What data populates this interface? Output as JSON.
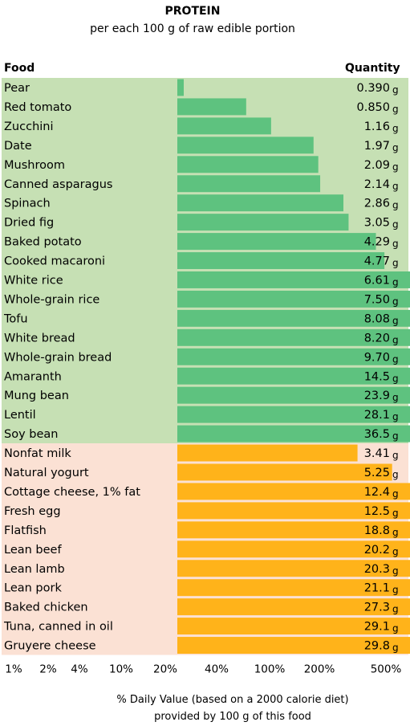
{
  "chart_data": {
    "type": "bar",
    "title": "PROTEIN",
    "subtitle": "per each 100 g of raw edible portion",
    "columns": {
      "food": "Food",
      "quantity": "Quantity"
    },
    "unit": "g",
    "x_axis": {
      "scale": "log",
      "ticks": [
        "1%",
        "2%",
        "4%",
        "10%",
        "20%",
        "40%",
        "100%",
        "200%",
        "500%"
      ],
      "label_line1": "% Daily Value (based on a 2000 calorie diet)",
      "label_line2": "provided by 100 g of this food"
    },
    "groups": [
      {
        "color": "#5ec27f",
        "background": "#c6e0b4",
        "items": [
          {
            "food": "Pear",
            "quantity": "0.390",
            "value": 0.39
          },
          {
            "food": "Red tomato",
            "quantity": "0.850",
            "value": 0.85
          },
          {
            "food": "Zucchini",
            "quantity": "1.16",
            "value": 1.16
          },
          {
            "food": "Date",
            "quantity": "1.97",
            "value": 1.97
          },
          {
            "food": "Mushroom",
            "quantity": "2.09",
            "value": 2.09
          },
          {
            "food": "Canned asparagus",
            "quantity": "2.14",
            "value": 2.14
          },
          {
            "food": "Spinach",
            "quantity": "2.86",
            "value": 2.86
          },
          {
            "food": "Dried fig",
            "quantity": "3.05",
            "value": 3.05
          },
          {
            "food": "Baked potato",
            "quantity": "4.29",
            "value": 4.29
          },
          {
            "food": "Cooked macaroni",
            "quantity": "4.77",
            "value": 4.77
          },
          {
            "food": "White rice",
            "quantity": "6.61",
            "value": 6.61
          },
          {
            "food": "Whole-grain rice",
            "quantity": "7.50",
            "value": 7.5
          },
          {
            "food": "Tofu",
            "quantity": "8.08",
            "value": 8.08
          },
          {
            "food": "White bread",
            "quantity": "8.20",
            "value": 8.2
          },
          {
            "food": "Whole-grain bread",
            "quantity": "9.70",
            "value": 9.7
          },
          {
            "food": "Amaranth",
            "quantity": "14.5",
            "value": 14.5
          },
          {
            "food": "Mung bean",
            "quantity": "23.9",
            "value": 23.9
          },
          {
            "food": "Lentil",
            "quantity": "28.1",
            "value": 28.1
          },
          {
            "food": "Soy bean",
            "quantity": "36.5",
            "value": 36.5
          }
        ]
      },
      {
        "color": "#ffb31a",
        "background": "#fbe1d4",
        "items": [
          {
            "food": "Nonfat milk",
            "quantity": "3.41",
            "value": 3.41
          },
          {
            "food": "Natural yogurt",
            "quantity": "5.25",
            "value": 5.25
          },
          {
            "food": "Cottage cheese, 1% fat",
            "quantity": "12.4",
            "value": 12.4
          },
          {
            "food": "Fresh egg",
            "quantity": "12.5",
            "value": 12.5
          },
          {
            "food": "Flatfish",
            "quantity": "18.8",
            "value": 18.8
          },
          {
            "food": "Lean beef",
            "quantity": "20.2",
            "value": 20.2
          },
          {
            "food": "Lean lamb",
            "quantity": "20.3",
            "value": 20.3
          },
          {
            "food": "Lean pork",
            "quantity": "21.1",
            "value": 21.1
          },
          {
            "food": "Baked chicken",
            "quantity": "27.3",
            "value": 27.3
          },
          {
            "food": "Tuna, canned in oil",
            "quantity": "29.1",
            "value": 29.1
          },
          {
            "food": "Gruyere cheese",
            "quantity": "29.8",
            "value": 29.8
          }
        ]
      }
    ]
  }
}
